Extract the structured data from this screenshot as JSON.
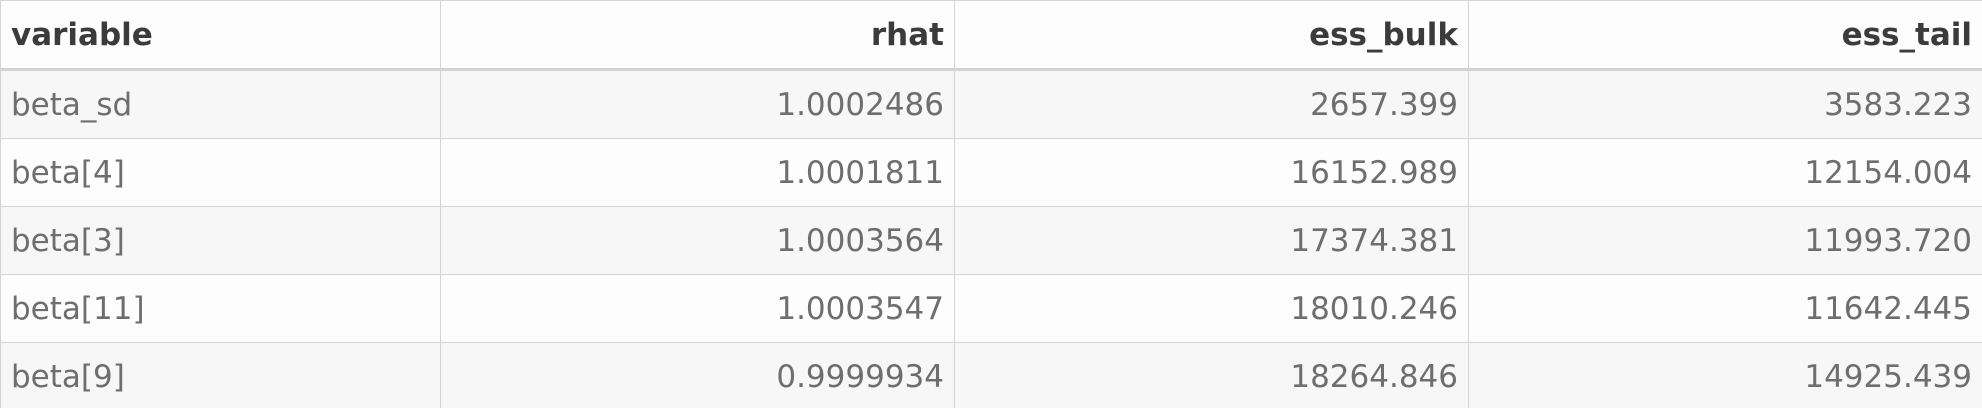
{
  "table": {
    "headers": [
      "variable",
      "rhat",
      "ess_bulk",
      "ess_tail"
    ],
    "rows": [
      [
        "beta_sd",
        "1.0002486",
        "2657.399",
        "3583.223"
      ],
      [
        "beta[4]",
        "1.0001811",
        "16152.989",
        "12154.004"
      ],
      [
        "beta[3]",
        "1.0003564",
        "17374.381",
        "11993.720"
      ],
      [
        "beta[11]",
        "1.0003547",
        "18010.246",
        "11642.445"
      ],
      [
        "beta[9]",
        "0.9999934",
        "18264.846",
        "14925.439"
      ]
    ]
  }
}
